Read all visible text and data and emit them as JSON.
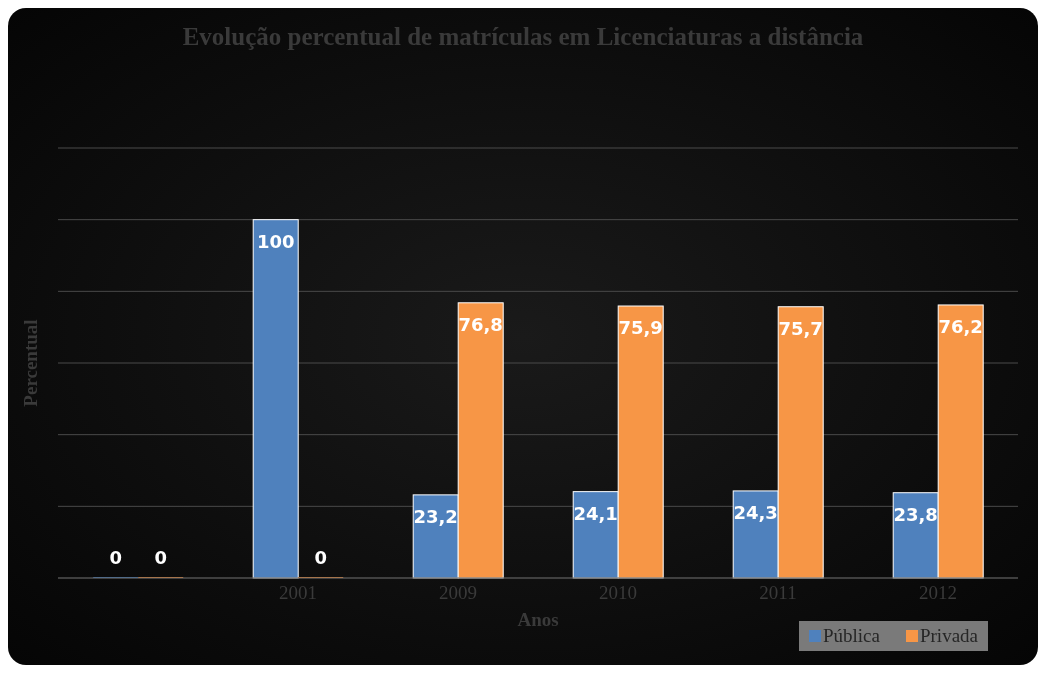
{
  "chart_data": {
    "type": "bar",
    "title": "Evolução percentual de matrículas em Licenciaturas a distância",
    "xlabel": "Anos",
    "ylabel": "Percentual",
    "categories": [
      null,
      "2001",
      "2009",
      "2010",
      "2011",
      "2012"
    ],
    "series": [
      {
        "name": "Pública",
        "color": "#4f81bd",
        "values": [
          0,
          100,
          23.2,
          24.1,
          24.3,
          23.8
        ],
        "value_labels": [
          "0",
          "100",
          "23,2",
          "24,1",
          "24,3",
          "23,8"
        ]
      },
      {
        "name": "Privada",
        "color": "#f79646",
        "values": [
          0,
          0,
          76.8,
          75.9,
          75.7,
          76.2
        ],
        "value_labels": [
          "0",
          "0",
          "76,8",
          "75,9",
          "75,7",
          "76,2"
        ]
      }
    ],
    "tick_labels": "x",
    "grid": "y",
    "legend": "bottom right"
  }
}
